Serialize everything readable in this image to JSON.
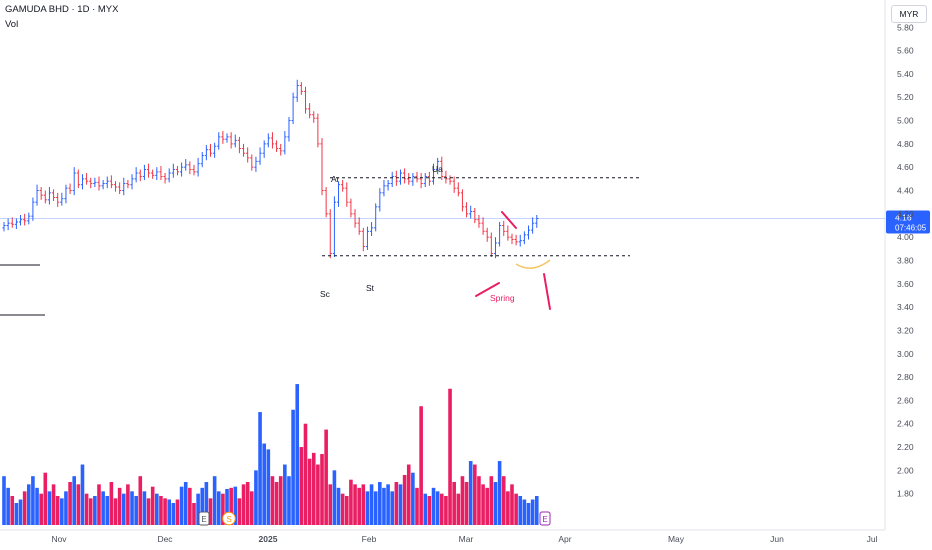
{
  "header": {
    "symbol_line": "GAMUDA BHD · 1D · MYX",
    "volume_label": "Vol",
    "currency": "MYR"
  },
  "last_price": {
    "value": "4.16",
    "countdown": "07:46:05"
  },
  "annotations": {
    "ar": "Ar",
    "ua": "Ua",
    "sc": "Sc",
    "st": "St",
    "spring": "Spring"
  },
  "event_markers": {
    "earnings": "E",
    "dividend": "S"
  },
  "colors": {
    "up": "#2962ff",
    "down": "#f23645",
    "volume_up": "#2962ff",
    "volume_down": "#e91e63",
    "last_price_line": "#2962ff",
    "annotation_pink": "#e91e63",
    "curve": "#f5c76b",
    "text": "#131722",
    "axis_text": "#4a4e59"
  },
  "chart_data": {
    "type": "ohlc-bar+volume",
    "y_ticks": [
      "5.80",
      "5.60",
      "5.40",
      "5.20",
      "5.00",
      "4.80",
      "4.60",
      "4.40",
      "4.20",
      "4.00",
      "3.80",
      "3.60",
      "3.40",
      "3.20",
      "3.00",
      "2.80",
      "2.60",
      "2.40",
      "2.20",
      "2.00",
      "1.80"
    ],
    "x_ticks": [
      "Nov",
      "Dec",
      "2025",
      "Feb",
      "Mar",
      "Apr",
      "May",
      "Jun",
      "Jul"
    ],
    "ylim": [
      1.66,
      5.94
    ],
    "support_level": 3.84,
    "resistance_level": 4.51,
    "last_price": 4.16,
    "closes": [
      4.1,
      4.12,
      4.11,
      4.13,
      4.15,
      4.14,
      4.18,
      4.3,
      4.4,
      4.36,
      4.32,
      4.38,
      4.34,
      4.3,
      4.33,
      4.42,
      4.4,
      4.55,
      4.45,
      4.5,
      4.48,
      4.46,
      4.47,
      4.44,
      4.46,
      4.48,
      4.45,
      4.43,
      4.4,
      4.46,
      4.45,
      4.5,
      4.55,
      4.52,
      4.58,
      4.55,
      4.53,
      4.56,
      4.52,
      4.5,
      4.55,
      4.58,
      4.56,
      4.6,
      4.62,
      4.58,
      4.56,
      4.63,
      4.7,
      4.75,
      4.72,
      4.78,
      4.86,
      4.84,
      4.86,
      4.8,
      4.83,
      4.76,
      4.72,
      4.68,
      4.6,
      4.65,
      4.72,
      4.8,
      4.85,
      4.8,
      4.76,
      4.74,
      4.86,
      5.0,
      5.2,
      5.3,
      5.25,
      5.1,
      5.05,
      5.02,
      4.8,
      4.4,
      4.2,
      3.86,
      4.3,
      4.45,
      4.42,
      4.3,
      4.2,
      4.12,
      4.05,
      3.92,
      4.05,
      4.08,
      4.26,
      4.38,
      4.44,
      4.46,
      4.52,
      4.48,
      4.55,
      4.5,
      4.48,
      4.52,
      4.5,
      4.46,
      4.52,
      4.48,
      4.58,
      4.65,
      4.52,
      4.5,
      4.48,
      4.42,
      4.38,
      4.26,
      4.2,
      4.22,
      4.15,
      4.12,
      4.05,
      4.0,
      3.86,
      3.95,
      4.1,
      4.05,
      4.0,
      3.98,
      3.96,
      3.97,
      4.02,
      4.06,
      4.12,
      4.16
    ],
    "volumes": [
      1.95,
      1.85,
      1.78,
      1.72,
      1.75,
      1.82,
      1.88,
      1.95,
      1.85,
      1.8,
      1.98,
      1.82,
      1.88,
      1.78,
      1.76,
      1.82,
      1.9,
      1.95,
      1.88,
      2.05,
      1.8,
      1.76,
      1.78,
      1.88,
      1.82,
      1.78,
      1.9,
      1.76,
      1.85,
      1.8,
      1.88,
      1.82,
      1.78,
      1.95,
      1.82,
      1.76,
      1.86,
      1.8,
      1.78,
      1.76,
      1.75,
      1.72,
      1.75,
      1.86,
      1.9,
      1.85,
      1.72,
      1.8,
      1.85,
      1.9,
      1.76,
      1.95,
      1.82,
      1.8,
      1.84,
      1.85,
      1.86,
      1.76,
      1.88,
      1.9,
      1.82,
      2.0,
      2.5,
      2.23,
      2.18,
      1.95,
      1.9,
      1.95,
      2.05,
      1.95,
      2.52,
      2.74,
      2.2,
      2.4,
      2.1,
      2.15,
      2.05,
      2.14,
      2.35,
      1.88,
      2.0,
      1.85,
      1.8,
      1.78,
      1.92,
      1.88,
      1.85,
      1.88,
      1.82,
      1.88,
      1.82,
      1.9,
      1.85,
      1.88,
      1.82,
      1.9,
      1.88,
      1.96,
      2.05,
      1.98,
      1.85,
      2.55,
      1.8,
      1.78,
      1.85,
      1.82,
      1.8,
      1.78,
      2.7,
      1.9,
      1.8,
      1.95,
      1.9,
      2.08,
      2.05,
      1.95,
      1.88,
      1.85,
      1.95,
      1.9,
      2.08,
      1.95,
      1.82,
      1.88,
      1.8,
      1.78,
      1.75,
      1.72,
      1.75,
      1.78
    ]
  }
}
